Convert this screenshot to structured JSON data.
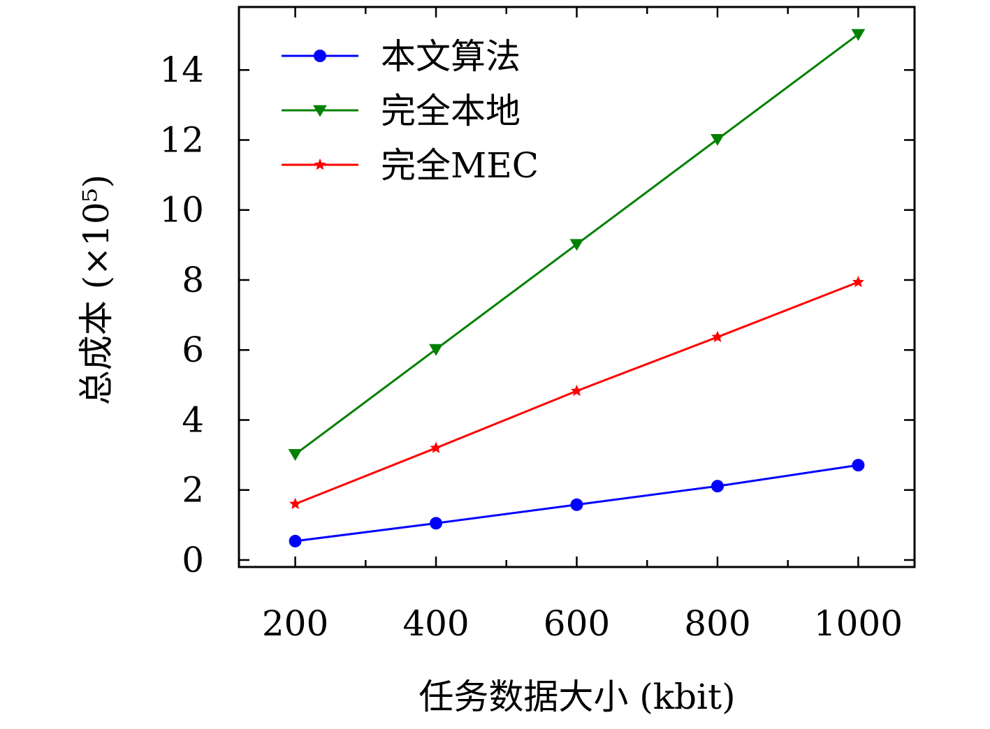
{
  "chart_data": {
    "type": "line",
    "xlabel": "任务数据大小 (kbit)",
    "ylabel": "总成本 (×10⁵)",
    "x": [
      200,
      400,
      600,
      800,
      1000
    ],
    "xticks": [
      "200",
      "400",
      "600",
      "800",
      "1000"
    ],
    "yticks": [
      "0",
      "2",
      "4",
      "6",
      "8",
      "10",
      "12",
      "14"
    ],
    "ytick_values": [
      0,
      2,
      4,
      6,
      8,
      10,
      12,
      14
    ],
    "xlim": [
      120,
      1080
    ],
    "ylim": [
      -0.2,
      15.8
    ],
    "grid": false,
    "legend_position": "top-left",
    "series": [
      {
        "name": "本文算法",
        "color": "#0000ff",
        "marker": "circle",
        "values": [
          0.54,
          1.05,
          1.58,
          2.11,
          2.71
        ]
      },
      {
        "name": "完全本地",
        "color": "#008000",
        "marker": "triangle-down",
        "values": [
          3.02,
          6.02,
          9.02,
          12.02,
          15.02
        ]
      },
      {
        "name": "完全MEC",
        "color": "#ff0000",
        "marker": "star",
        "values": [
          1.6,
          3.2,
          4.83,
          6.37,
          7.94
        ]
      }
    ]
  }
}
